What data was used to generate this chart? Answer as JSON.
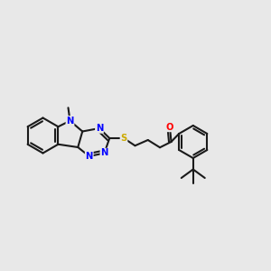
{
  "bg_color": "#e8e8e8",
  "bond_color": "#1a1a1a",
  "n_color": "#0000ff",
  "o_color": "#ff0000",
  "s_color": "#ccaa00",
  "lw": 1.5,
  "figsize": [
    3.0,
    3.0
  ],
  "dpi": 100,
  "xlim": [
    0,
    12
  ],
  "ylim": [
    2,
    9
  ]
}
